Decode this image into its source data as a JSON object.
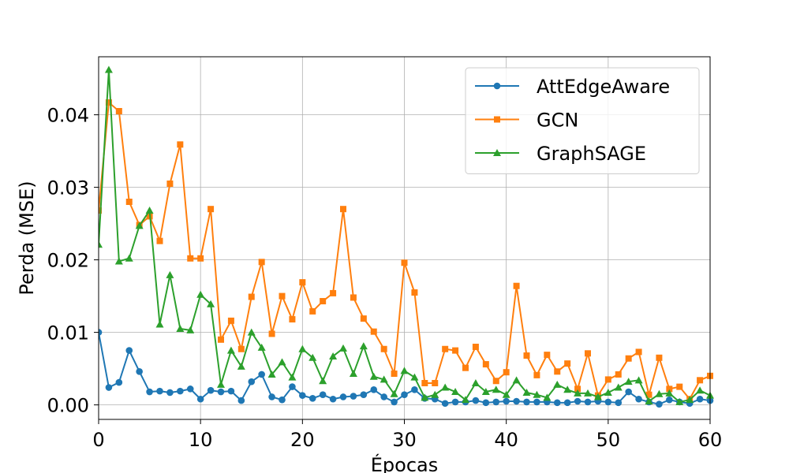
{
  "chart_data": {
    "type": "line",
    "xlabel": "Épocas",
    "ylabel": "Perda (MSE)",
    "xlim": [
      0,
      60
    ],
    "ylim": [
      -0.002,
      0.048
    ],
    "xticks": [
      0,
      10,
      20,
      30,
      40,
      50,
      60
    ],
    "xtick_labels": [
      "0",
      "10",
      "20",
      "30",
      "40",
      "50",
      "60"
    ],
    "yticks": [
      0.0,
      0.01,
      0.02,
      0.03,
      0.04
    ],
    "ytick_labels": [
      "0.00",
      "0.01",
      "0.02",
      "0.03",
      "0.04"
    ],
    "grid": true,
    "legend_position": "top-right",
    "x": [
      0,
      1,
      2,
      3,
      4,
      5,
      6,
      7,
      8,
      9,
      10,
      11,
      12,
      13,
      14,
      15,
      16,
      17,
      18,
      19,
      20,
      21,
      22,
      23,
      24,
      25,
      26,
      27,
      28,
      29,
      30,
      31,
      32,
      33,
      34,
      35,
      36,
      37,
      38,
      39,
      40,
      41,
      42,
      43,
      44,
      45,
      46,
      47,
      48,
      49,
      50,
      51,
      52,
      53,
      54,
      55,
      56,
      57,
      58,
      59,
      60
    ],
    "series": [
      {
        "name": "AttEdgeAware",
        "color": "#1f77b4",
        "marker": "circle",
        "values": [
          0.01,
          0.0024,
          0.0031,
          0.0075,
          0.0046,
          0.0018,
          0.0019,
          0.0017,
          0.0019,
          0.0022,
          0.0008,
          0.002,
          0.0018,
          0.0019,
          0.0006,
          0.0032,
          0.0042,
          0.0011,
          0.0007,
          0.0025,
          0.0013,
          0.0009,
          0.0014,
          0.0008,
          0.0011,
          0.0012,
          0.0014,
          0.0021,
          0.0011,
          0.0004,
          0.0014,
          0.0021,
          0.0009,
          0.0008,
          0.0002,
          0.0004,
          0.0004,
          0.0006,
          0.0003,
          0.0004,
          0.0005,
          0.0005,
          0.0004,
          0.0004,
          0.0004,
          0.0003,
          0.0003,
          0.0005,
          0.0004,
          0.0005,
          0.0004,
          0.0003,
          0.0018,
          0.0008,
          0.0004,
          0.0001,
          0.0007,
          0.0004,
          0.0002,
          0.0008,
          0.0006
        ]
      },
      {
        "name": "GCN",
        "color": "#ff7f0e",
        "marker": "square",
        "values": [
          0.0268,
          0.0417,
          0.0405,
          0.028,
          0.0248,
          0.026,
          0.0226,
          0.0305,
          0.0359,
          0.0202,
          0.0202,
          0.027,
          0.009,
          0.0116,
          0.0077,
          0.0149,
          0.0197,
          0.0098,
          0.015,
          0.0118,
          0.0169,
          0.0129,
          0.0143,
          0.0154,
          0.027,
          0.0148,
          0.0119,
          0.0101,
          0.0077,
          0.0043,
          0.0196,
          0.0155,
          0.003,
          0.003,
          0.0077,
          0.0075,
          0.0051,
          0.008,
          0.0056,
          0.0033,
          0.0045,
          0.0164,
          0.0068,
          0.0041,
          0.0069,
          0.0046,
          0.0057,
          0.0022,
          0.0071,
          0.0013,
          0.0035,
          0.0042,
          0.0064,
          0.0073,
          0.0014,
          0.0065,
          0.0022,
          0.0025,
          0.0008,
          0.0034,
          0.004
        ]
      },
      {
        "name": "GraphSAGE",
        "color": "#2ca02c",
        "marker": "triangle",
        "values": [
          0.0221,
          0.0462,
          0.0198,
          0.0202,
          0.0247,
          0.0268,
          0.0111,
          0.0179,
          0.0105,
          0.0103,
          0.0152,
          0.0139,
          0.0028,
          0.0075,
          0.0053,
          0.01,
          0.0079,
          0.0042,
          0.0059,
          0.0038,
          0.0077,
          0.0065,
          0.0033,
          0.0067,
          0.0078,
          0.0043,
          0.0081,
          0.0039,
          0.0035,
          0.0015,
          0.0047,
          0.0038,
          0.001,
          0.0014,
          0.0024,
          0.0018,
          0.0007,
          0.003,
          0.0018,
          0.0021,
          0.0014,
          0.0034,
          0.0017,
          0.0014,
          0.001,
          0.0028,
          0.0021,
          0.0016,
          0.0016,
          0.0011,
          0.0017,
          0.0024,
          0.0032,
          0.0034,
          0.0005,
          0.0015,
          0.0016,
          0.0004,
          0.0007,
          0.002,
          0.0013
        ]
      }
    ]
  }
}
